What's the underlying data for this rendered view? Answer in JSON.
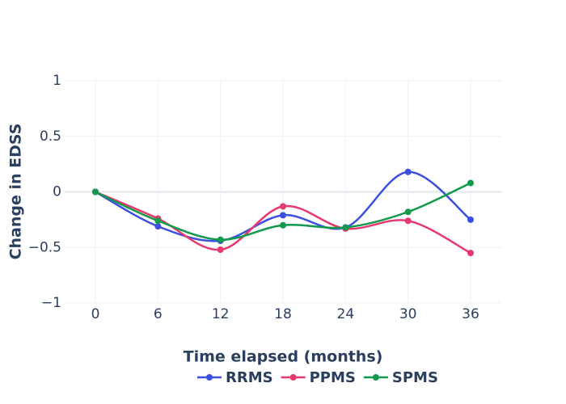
{
  "chart_data": {
    "type": "line",
    "smooth": true,
    "x_label": "Time elapsed (months)",
    "y_label": "Change in EDSS",
    "x": [
      0,
      6,
      12,
      18,
      24,
      30,
      36
    ],
    "series": [
      {
        "name": "RRMS",
        "color": "#3b4fe0",
        "values": [
          0,
          -0.31,
          -0.44,
          -0.21,
          -0.32,
          0.18,
          -0.25
        ]
      },
      {
        "name": "PPMS",
        "color": "#e8396e",
        "values": [
          0,
          -0.24,
          -0.52,
          -0.13,
          -0.33,
          -0.26,
          -0.55
        ]
      },
      {
        "name": "SPMS",
        "color": "#119a4b",
        "values": [
          0,
          -0.26,
          -0.43,
          -0.3,
          -0.32,
          -0.18,
          0.08
        ]
      }
    ],
    "xlim": [
      -2.95,
      38.95
    ],
    "xticks": [
      0,
      6,
      12,
      18,
      24,
      30,
      36
    ],
    "ylim": [
      -1,
      1
    ],
    "yticks": [
      {
        "value": -1,
        "label": "−1"
      },
      {
        "value": -0.5,
        "label": "−0.5"
      },
      0,
      0.5,
      1
    ],
    "grid": true,
    "legend": "bottom"
  }
}
